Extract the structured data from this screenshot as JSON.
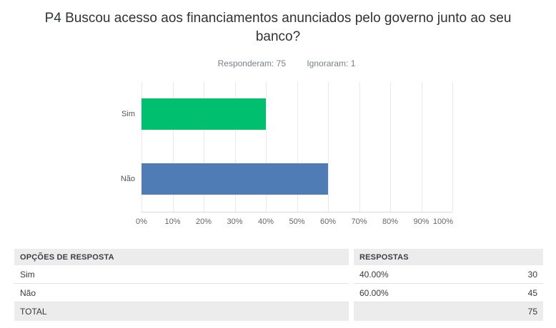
{
  "page": {
    "title": "P4 Buscou acesso aos financiamentos anunciados pelo governo junto ao seu banco?",
    "answered_label": "Responderam: 75",
    "skipped_label": "Ignoraram: 1"
  },
  "chart_data": {
    "type": "bar",
    "orientation": "horizontal",
    "title": "P4 Buscou acesso aos financiamentos anunciados pelo governo junto ao seu banco?",
    "categories": [
      "Sim",
      "Não"
    ],
    "values": [
      40,
      60
    ],
    "value_unit": "%",
    "bar_colors": [
      "#00bf6f",
      "#507cb6"
    ],
    "x_ticks": [
      "0%",
      "10%",
      "20%",
      "30%",
      "40%",
      "50%",
      "60%",
      "70%",
      "80%",
      "90%",
      "100%"
    ],
    "xlim": [
      0,
      100
    ],
    "xlabel": "",
    "ylabel": "",
    "grid": true,
    "legend": false
  },
  "table": {
    "headers": {
      "options": "OPÇÕES DE RESPOSTA",
      "responses": "RESPOSTAS"
    },
    "rows": [
      {
        "label": "Sim",
        "percent": "40.00%",
        "count": "30"
      },
      {
        "label": "Não",
        "percent": "60.00%",
        "count": "45"
      }
    ],
    "total": {
      "label": "TOTAL",
      "count": "75"
    }
  },
  "colors": {
    "bar_green": "#00bf6f",
    "bar_blue": "#507cb6",
    "table_header_bg": "#ececec",
    "gridline": "#e9e9e9",
    "subtitle_text": "#76808a"
  }
}
